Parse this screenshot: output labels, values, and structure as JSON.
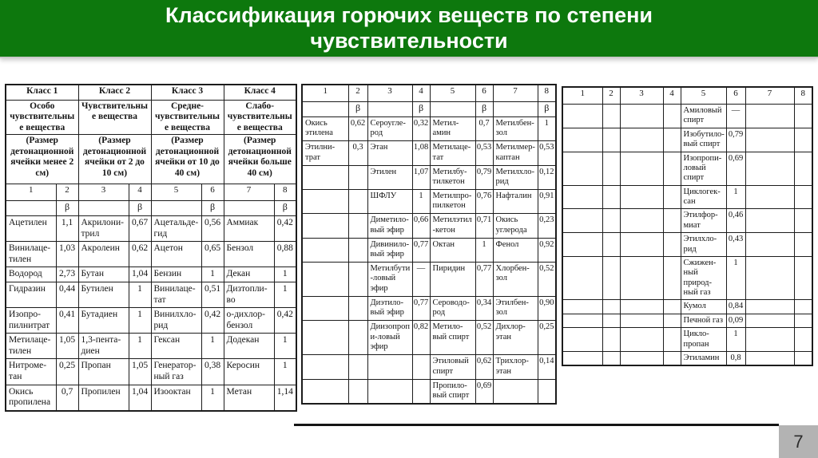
{
  "slide": {
    "title": "Классификация горючих веществ по степени чувствительности",
    "page_number": "7"
  },
  "colors": {
    "banner_green": "#0d780d",
    "page_box_gray": "#b3b3b3",
    "table_border": "#1c1c1c"
  },
  "table1": {
    "classes": [
      {
        "name": "Класс 1",
        "type": "Особо чувствительные вещества",
        "size": "(Размер детонационной ячейки менее 2 см)"
      },
      {
        "name": "Класс 2",
        "type": "Чувствительные вещества",
        "size": "(Размер детонационной ячейки от 2 до 10 см)"
      },
      {
        "name": "Класс 3",
        "type": "Средне-чувствительные вещества",
        "size": "(Размер детонационной ячейки от 10 до 40 см)"
      },
      {
        "name": "Класс 4",
        "type": "Слабо-чувствительные вещества",
        "size": "(Размер детонационной ячейки больше 40 см)"
      }
    ],
    "column_numbers": [
      "1",
      "2",
      "3",
      "4",
      "5",
      "6",
      "7",
      "8"
    ],
    "beta_row": [
      "",
      "β",
      "",
      "β",
      "",
      "β",
      "",
      "β"
    ],
    "rows": [
      [
        "Ацетилен",
        "1,1",
        "Акрилони-трил",
        "0,67",
        "Ацетальде-гид",
        "0,56",
        "Аммиак",
        "0,42"
      ],
      [
        "Винилаце-тилен",
        "1,03",
        "Акролеин",
        "0,62",
        "Ацетон",
        "0,65",
        "Бензол",
        "0,88"
      ],
      [
        "Водород",
        "2,73",
        "Бутан",
        "1,04",
        "Бензин",
        "1",
        "Декан",
        "1"
      ],
      [
        "Гидразин",
        "0,44",
        "Бутилен",
        "1",
        "Винилаце-тат",
        "0,51",
        "Дизтопли-во",
        "1"
      ],
      [
        "Изопро-пилнитрат",
        "0,41",
        "Бутадиен",
        "1",
        "Винилхло-рид",
        "0,42",
        "о-дихлор-бензол",
        "0,42"
      ],
      [
        "Метилаце-тилен",
        "1,05",
        "1,3-пента-диен",
        "1",
        "Гексан",
        "1",
        "Додекан",
        "1"
      ],
      [
        "Нитроме-тан",
        "0,25",
        "Пропан",
        "1,05",
        "Генератор-ный газ",
        "0,38",
        "Керосин",
        "1"
      ],
      [
        "Окись пропилена",
        "0,7",
        "Пропилен",
        "1,04",
        "Изооктан",
        "1",
        "Метан",
        "1,14"
      ]
    ]
  },
  "table2": {
    "column_numbers": [
      "1",
      "2",
      "3",
      "4",
      "5",
      "6",
      "7",
      "8"
    ],
    "beta_row": [
      "",
      "β",
      "",
      "β",
      "",
      "β",
      "",
      "β"
    ],
    "rows": [
      [
        "Окись этилена",
        "0,62",
        "Сероугле-род",
        "0,32",
        "Метил-амин",
        "0,7",
        "Метилбен-зол",
        "1"
      ],
      [
        "Этилни-трат",
        "0,3",
        "Этан",
        "1,08",
        "Метилаце-тат",
        "0,53",
        "Метилмер-каптан",
        "0,53"
      ],
      [
        "",
        "",
        "Этилен",
        "1,07",
        "Метилбу-тилкетон",
        "0,79",
        "Метилхло-рид",
        "0,12"
      ],
      [
        "",
        "",
        "ШФЛУ",
        "1",
        "Метилпро-пилкетон",
        "0,76",
        "Нафталин",
        "0,91"
      ],
      [
        "",
        "",
        "Диметило-вый эфир",
        "0,66",
        "Метилэтил-кетон",
        "0,71",
        "Окись углерода",
        "0,23"
      ],
      [
        "",
        "",
        "Дивинило-вый эфир",
        "0,77",
        "Октан",
        "1",
        "Фенол",
        "0,92"
      ],
      [
        "",
        "",
        "Метилбути-ловый эфир",
        "—",
        "Пиридин",
        "0,77",
        "Хлорбен-зол",
        "0,52"
      ],
      [
        "",
        "",
        "Диэтило-вый эфир",
        "0,77",
        "Сероводо-род",
        "0,34",
        "Этилбен-зол",
        "0,90"
      ],
      [
        "",
        "",
        "Диизопропи-ловый эфир",
        "0,82",
        "Метило-вый спирт",
        "0,52",
        "Дихлор-этан",
        "0,25"
      ],
      [
        "",
        "",
        "",
        "",
        "Этиловый спирт",
        "0,62",
        "Трихлор-этан",
        "0,14"
      ],
      [
        "",
        "",
        "",
        "",
        "Пропило-вый спирт",
        "0,69",
        "",
        ""
      ]
    ]
  },
  "table3": {
    "column_numbers": [
      "1",
      "2",
      "3",
      "4",
      "5",
      "6",
      "7",
      "8"
    ],
    "rows": [
      [
        "",
        "",
        "",
        "",
        "Амиловый спирт",
        "—",
        "",
        ""
      ],
      [
        "",
        "",
        "",
        "",
        "Изобутило-вый спирт",
        "0,79",
        "",
        ""
      ],
      [
        "",
        "",
        "",
        "",
        "Изопропи-ловый спирт",
        "0,69",
        "",
        ""
      ],
      [
        "",
        "",
        "",
        "",
        "Циклогек-сан",
        "1",
        "",
        ""
      ],
      [
        "",
        "",
        "",
        "",
        "Этилфор-миат",
        "0,46",
        "",
        ""
      ],
      [
        "",
        "",
        "",
        "",
        "Этилхло-рид",
        "0,43",
        "",
        ""
      ],
      [
        "",
        "",
        "",
        "",
        "Сжижен-ный природ-ный газ",
        "1",
        "",
        ""
      ],
      [
        "",
        "",
        "",
        "",
        "Кумол",
        "0,84",
        "",
        ""
      ],
      [
        "",
        "",
        "",
        "",
        "Печной газ",
        "0,09",
        "",
        ""
      ],
      [
        "",
        "",
        "",
        "",
        "Цикло-пропан",
        "1",
        "",
        ""
      ],
      [
        "",
        "",
        "",
        "",
        "Этиламин",
        "0,8",
        "",
        ""
      ]
    ]
  }
}
